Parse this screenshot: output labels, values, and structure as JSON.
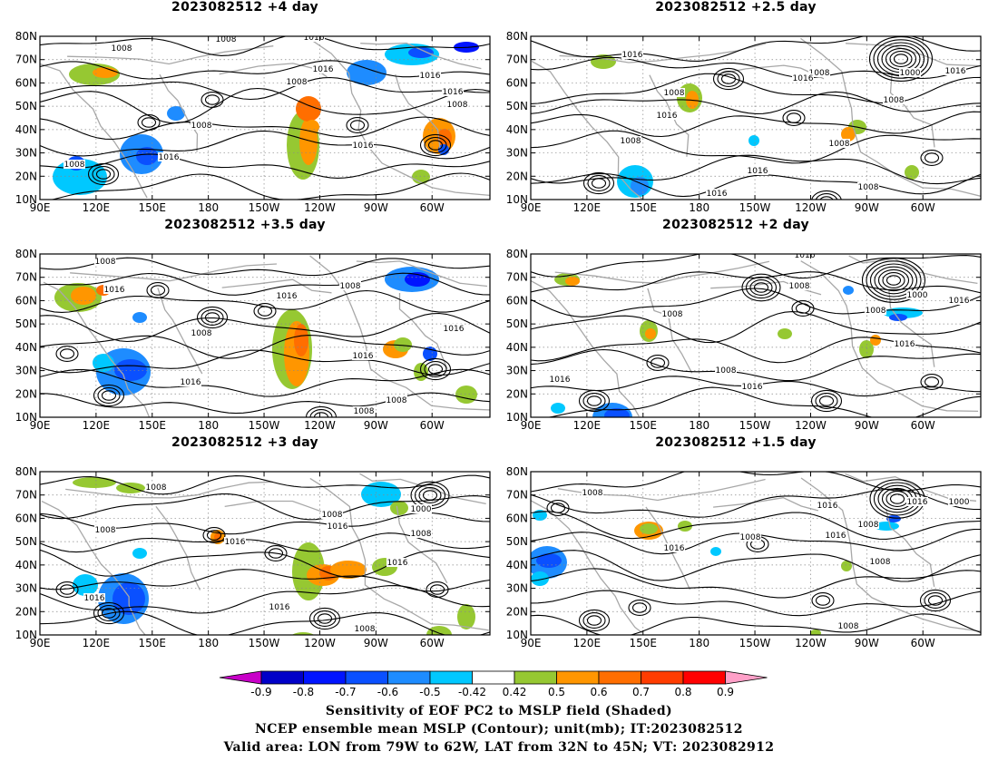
{
  "panels": [
    {
      "id": "p4",
      "title": "2023082512 +4 day",
      "col": 0,
      "row": 0,
      "contour_labels": [
        "1008",
        "1016",
        "1016",
        "1008",
        "1016",
        "1008",
        "1016",
        "1008",
        "1008",
        "1016",
        "1008",
        "1016"
      ]
    },
    {
      "id": "p25",
      "title": "2023082512 +2.5 day",
      "col": 1,
      "row": 0,
      "contour_labels": [
        "1016",
        "1008",
        "1016",
        "1008",
        "1016",
        "1008",
        "1000",
        "1016",
        "1008",
        "1016",
        "1016",
        "1008",
        "1008"
      ]
    },
    {
      "id": "p35",
      "title": "2023082512 +3.5 day",
      "col": 0,
      "row": 1,
      "contour_labels": [
        "1008",
        "1016",
        "1016",
        "1008",
        "1008",
        "1016",
        "1016",
        "1016",
        "1008",
        "1008"
      ]
    },
    {
      "id": "p2",
      "title": "2023082512 +2 day",
      "col": 1,
      "row": 1,
      "contour_labels": [
        "1016",
        "1008",
        "1008",
        "1000",
        "1016",
        "1008",
        "1016",
        "1008",
        "1016",
        "1016"
      ]
    },
    {
      "id": "p3",
      "title": "2023082512 +3 day",
      "col": 0,
      "row": 2,
      "contour_labels": [
        "1008",
        "1016",
        "1008",
        "1016",
        "1008",
        "1016",
        "1000",
        "1008",
        "1016",
        "1016",
        "1008"
      ]
    },
    {
      "id": "p15",
      "title": "2023082512 +1.5 day",
      "col": 1,
      "row": 2,
      "contour_labels": [
        "1008",
        "1016",
        "1008",
        "1016",
        "1000",
        "1016",
        "1008",
        "1016",
        "1008",
        "1008"
      ]
    }
  ],
  "lat_ticks": [
    "80N",
    "70N",
    "60N",
    "50N",
    "40N",
    "30N",
    "20N",
    "10N"
  ],
  "lon_ticks": [
    "90E",
    "120E",
    "150E",
    "180",
    "150W",
    "120W",
    "90W",
    "60W"
  ],
  "colorbar": {
    "labels": [
      "-0.9",
      "-0.8",
      "-0.7",
      "-0.6",
      "-0.5",
      "-0.42",
      "0.42",
      "0.5",
      "0.6",
      "0.7",
      "0.8",
      "0.9"
    ],
    "colors": [
      "#c800c8",
      "#0000c8",
      "#0014ff",
      "#0a50ff",
      "#1e8cff",
      "#00c8ff",
      "#ffffff",
      "#96c832",
      "#ff9600",
      "#ff6e00",
      "#ff3c00",
      "#ff0000",
      "#ffa0c8"
    ]
  },
  "caption": {
    "line1": "Sensitivity of EOF PC2 to MSLP field (Shaded)",
    "line2": "NCEP ensemble mean MSLP (Contour); unit(mb); IT:2023082512",
    "line3": "Valid area: LON from 79W to 62W, LAT from 32N to 45N; VT: 2023082912"
  }
}
